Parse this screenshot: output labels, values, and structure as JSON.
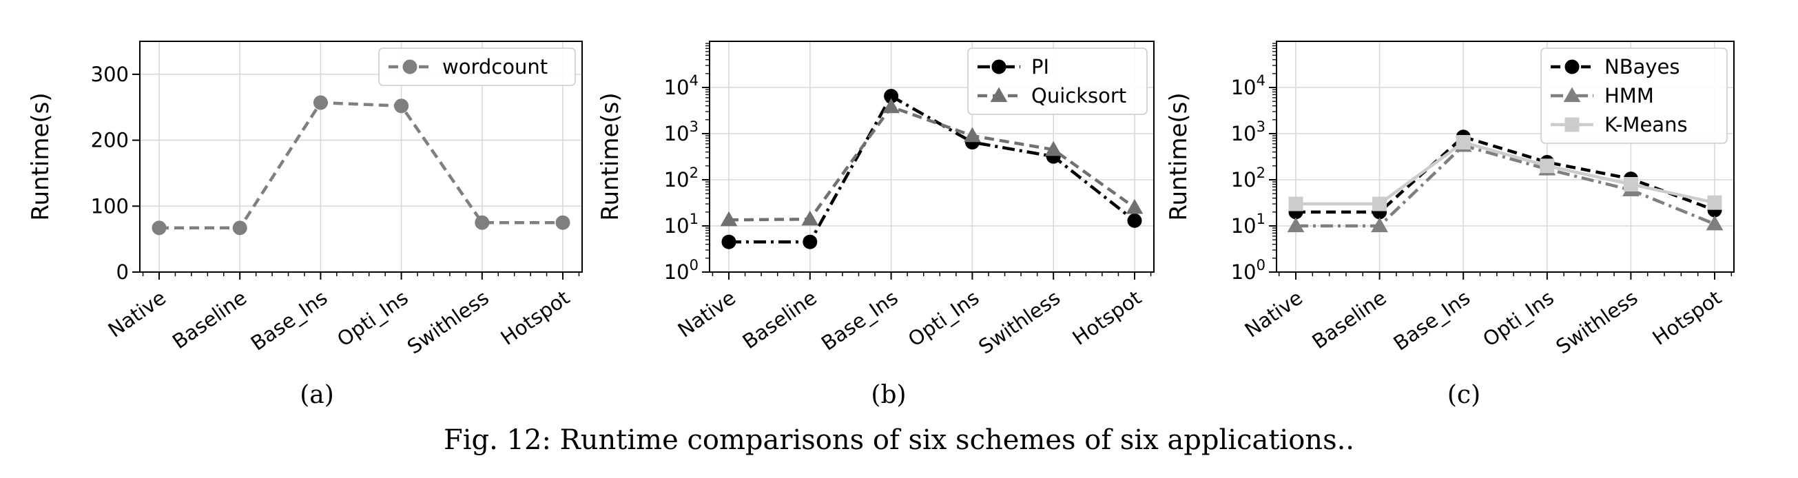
{
  "figure": {
    "caption": "Fig. 12: Runtime comparisons of six schemes of six applications.."
  },
  "chart_data": [
    {
      "id": "a",
      "type": "line",
      "subcaption": "(a)",
      "categories": [
        "Native",
        "Baseline",
        "Base_Ins",
        "Opti_Ins",
        "Swithless",
        "Hotspot"
      ],
      "ylabel": "Runtime(s)",
      "yscale": "linear",
      "ylim": [
        0,
        350
      ],
      "yticks": [
        0,
        100,
        200,
        300
      ],
      "ytick_labels": [
        "0",
        "100",
        "200",
        "300"
      ],
      "grid": true,
      "legend_position": "top-right",
      "series": [
        {
          "name": "wordcount",
          "values": [
            67,
            67,
            257,
            252,
            75,
            75
          ],
          "color": "#7f7f7f",
          "marker": "circle",
          "dash": "dashed"
        }
      ]
    },
    {
      "id": "b",
      "type": "line",
      "subcaption": "(b)",
      "categories": [
        "Native",
        "Baseline",
        "Base_Ins",
        "Opti_Ins",
        "Swithless",
        "Hotspot"
      ],
      "ylabel": "Runtime(s)",
      "yscale": "log",
      "ylim": [
        1,
        100000
      ],
      "yticks": [
        1,
        10,
        100,
        1000,
        10000
      ],
      "ytick_labels": [
        "10^0",
        "10^1",
        "10^2",
        "10^3",
        "10^4"
      ],
      "grid": true,
      "legend_position": "top-right",
      "series": [
        {
          "name": "PI",
          "values": [
            4.5,
            4.5,
            6500,
            650,
            320,
            13
          ],
          "color": "#000000",
          "marker": "circle",
          "dash": "dashdot"
        },
        {
          "name": "Quicksort",
          "values": [
            13.5,
            14,
            3800,
            900,
            450,
            25
          ],
          "color": "#707070",
          "marker": "triangle",
          "dash": "dashed"
        }
      ]
    },
    {
      "id": "c",
      "type": "line",
      "subcaption": "(c)",
      "categories": [
        "Native",
        "Baseline",
        "Base_Ins",
        "Opti_Ins",
        "Swithless",
        "Hotspot"
      ],
      "ylabel": "Runtime(s)",
      "yscale": "log",
      "ylim": [
        1,
        100000
      ],
      "yticks": [
        1,
        10,
        100,
        1000,
        10000
      ],
      "ytick_labels": [
        "10^0",
        "10^1",
        "10^2",
        "10^3",
        "10^4"
      ],
      "grid": true,
      "legend_position": "top-right",
      "series": [
        {
          "name": "NBayes",
          "values": [
            20,
            20,
            850,
            240,
            105,
            22
          ],
          "color": "#000000",
          "marker": "circle",
          "dash": "dashed"
        },
        {
          "name": "HMM",
          "values": [
            10,
            10,
            550,
            170,
            60,
            11
          ],
          "color": "#7f7f7f",
          "marker": "triangle",
          "dash": "dashdot"
        },
        {
          "name": "K-Means",
          "values": [
            30,
            30,
            650,
            200,
            80,
            32
          ],
          "color": "#cccccc",
          "marker": "square",
          "dash": "solid"
        }
      ]
    }
  ]
}
